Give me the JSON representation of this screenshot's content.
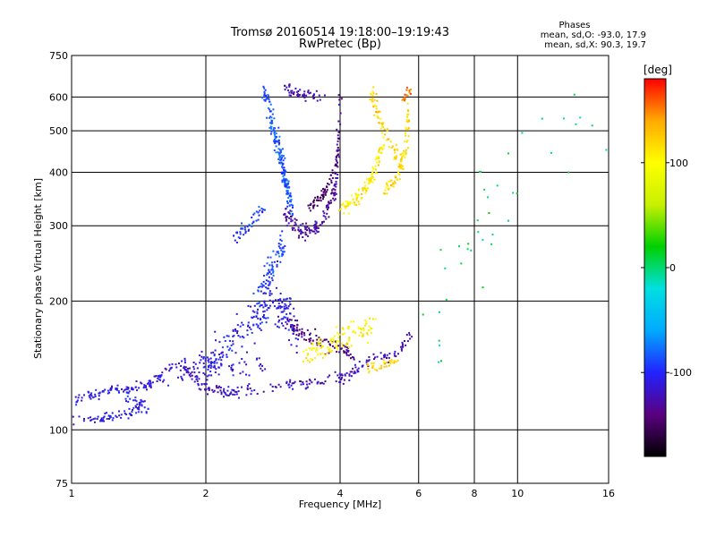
{
  "header": {
    "title_line1": "Tromsø 20160514 19:18:00–19:19:43",
    "title_line2": "RwPretec (Bp)"
  },
  "stats": {
    "heading": "Phases",
    "line_o": "mean, sd,O: -93.0, 17.9",
    "line_x": "mean, sd,X: 90.3, 19.7"
  },
  "colorbar": {
    "label": "[deg]",
    "range": [
      -180,
      180
    ],
    "ticks": [
      {
        "value": 100,
        "label": "100"
      },
      {
        "value": 0,
        "label": "0"
      },
      {
        "value": -100,
        "label": "-100"
      }
    ],
    "colors": [
      "#000000",
      "#5a0080",
      "#2222ff",
      "#00aaff",
      "#00e0e0",
      "#00d000",
      "#c8f000",
      "#ffff00",
      "#ffaa00",
      "#ff0000"
    ]
  },
  "chart_data": {
    "type": "scatter",
    "xlabel": "Frequency [MHz]",
    "ylabel": "Stationary phase Virtual Height [km]",
    "xscale": "log",
    "yscale": "log",
    "xlim": [
      1,
      16
    ],
    "ylim": [
      75,
      750
    ],
    "grid": true,
    "xticks": [
      {
        "value": 1,
        "label": "1"
      },
      {
        "value": 2,
        "label": "2"
      },
      {
        "value": 4,
        "label": "4"
      },
      {
        "value": 6,
        "label": "6"
      },
      {
        "value": 8,
        "label": "8"
      },
      {
        "value": 10,
        "label": "10"
      },
      {
        "value": 16,
        "label": "16"
      }
    ],
    "yticks": [
      {
        "value": 75,
        "label": "75"
      },
      {
        "value": 100,
        "label": "100"
      },
      {
        "value": 200,
        "label": "200"
      },
      {
        "value": 300,
        "label": "300"
      },
      {
        "value": 400,
        "label": "400"
      },
      {
        "value": 500,
        "label": "500"
      },
      {
        "value": 600,
        "label": "600"
      },
      {
        "value": 750,
        "label": "750"
      }
    ],
    "color_by": "phase_deg",
    "traces": [
      {
        "f": [
          1.0,
          1.1,
          1.2,
          1.35,
          1.5,
          1.6
        ],
        "h": [
          117,
          120,
          123,
          125,
          128,
          134
        ],
        "phase": -110,
        "n": 110,
        "jitter": 0.04
      },
      {
        "f": [
          1.0,
          1.12,
          1.25,
          1.35,
          1.45
        ],
        "h": [
          106,
          106,
          108,
          110,
          116
        ],
        "phase": -108,
        "n": 70,
        "jitter": 0.04
      },
      {
        "f": [
          1.32,
          1.4,
          1.5
        ],
        "h": [
          118,
          114,
          110
        ],
        "phase": -100,
        "n": 20,
        "jitter": 0.06
      },
      {
        "f": [
          1.6,
          1.75,
          1.9,
          2.1,
          2.4,
          2.7
        ],
        "h": [
          132,
          138,
          142,
          143,
          140,
          138
        ],
        "phase": -115,
        "n": 90,
        "jitter": 0.1
      },
      {
        "f": [
          1.8,
          2.0,
          2.3,
          2.8,
          3.3,
          3.9,
          4.4
        ],
        "h": [
          140,
          125,
          122,
          125,
          128,
          132,
          136
        ],
        "phase": -120,
        "n": 160,
        "jitter": 0.05
      },
      {
        "f": [
          2.0,
          2.3,
          2.6,
          2.8,
          3.0,
          3.2
        ],
        "h": [
          140,
          165,
          180,
          200,
          190,
          170
        ],
        "phase": -105,
        "n": 220,
        "jitter": 0.16
      },
      {
        "f": [
          2.6,
          2.8,
          3.0
        ],
        "h": [
          200,
          240,
          270
        ],
        "phase": -90,
        "n": 80,
        "jitter": 0.12
      },
      {
        "f": [
          3.0,
          3.3,
          3.6,
          4.0,
          4.3
        ],
        "h": [
          180,
          168,
          160,
          155,
          150
        ],
        "phase": -140,
        "n": 90,
        "jitter": 0.06
      },
      {
        "f": [
          3.3,
          3.8,
          4.3,
          4.8
        ],
        "h": [
          150,
          160,
          168,
          175
        ],
        "phase": 105,
        "n": 110,
        "jitter": 0.09
      },
      {
        "f": [
          4.3,
          4.8,
          5.4,
          5.8
        ],
        "h": [
          140,
          146,
          152,
          168
        ],
        "phase": -120,
        "n": 55,
        "jitter": 0.05
      },
      {
        "f": [
          4.6,
          5.0,
          5.5
        ],
        "h": [
          140,
          142,
          144
        ],
        "phase": 120,
        "n": 35,
        "jitter": 0.04
      },
      {
        "f": [
          2.3,
          2.5,
          2.7
        ],
        "h": [
          280,
          300,
          330
        ],
        "phase": -95,
        "n": 45,
        "jitter": 0.06
      },
      {
        "f": [
          2.7,
          2.85,
          3.0,
          3.1
        ],
        "h": [
          620,
          500,
          400,
          330
        ],
        "phase": -85,
        "n": 190,
        "jitter": 0.09
      },
      {
        "f": [
          3.0,
          3.3,
          3.6,
          3.9,
          4.0
        ],
        "h": [
          320,
          290,
          300,
          360,
          600
        ],
        "phase": -130,
        "n": 170,
        "jitter": 0.06
      },
      {
        "f": [
          3.4,
          3.7,
          3.95
        ],
        "h": [
          330,
          360,
          420
        ],
        "phase": -150,
        "n": 60,
        "jitter": 0.05
      },
      {
        "f": [
          3.0,
          3.3,
          3.7
        ],
        "h": [
          630,
          610,
          600
        ],
        "phase": -125,
        "n": 50,
        "jitter": 0.04
      },
      {
        "f": [
          4.0,
          4.3,
          4.6,
          4.8,
          5.0
        ],
        "h": [
          330,
          345,
          370,
          410,
          470
        ],
        "phase": 110,
        "n": 110,
        "jitter": 0.06
      },
      {
        "f": [
          4.7,
          4.95,
          5.3,
          5.6
        ],
        "h": [
          620,
          520,
          450,
          400
        ],
        "phase": 120,
        "n": 80,
        "jitter": 0.07
      },
      {
        "f": [
          5.0,
          5.3,
          5.6,
          5.7
        ],
        "h": [
          360,
          380,
          440,
          560
        ],
        "phase": 115,
        "n": 70,
        "jitter": 0.06
      },
      {
        "f": [
          5.5,
          5.65,
          5.8
        ],
        "h": [
          590,
          610,
          620
        ],
        "phase": 150,
        "n": 16,
        "jitter": 0.04
      },
      {
        "f": [
          6.3,
          7.8,
          9.5,
          12.0,
          15.0
        ],
        "h": [
          160,
          250,
          400,
          480,
          560
        ],
        "phase": 0,
        "n": 40,
        "jitter": 0.45
      }
    ]
  }
}
